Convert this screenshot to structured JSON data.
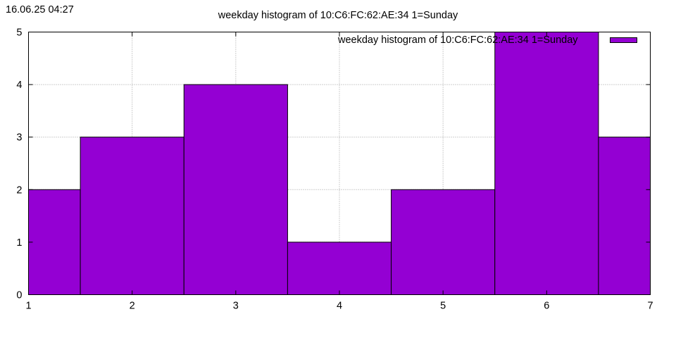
{
  "timestamp": "16.06.25 04:27",
  "chart_data": {
    "type": "bar",
    "title": "weekday histogram of 10:C6:FC:62:AE:34 1=Sunday",
    "xlabel": "",
    "ylabel": "",
    "x": [
      1,
      2,
      3,
      4,
      5,
      6,
      7
    ],
    "x_ticks": [
      "1",
      "2",
      "3",
      "4",
      "5",
      "6",
      "7"
    ],
    "y_ticks": [
      "0",
      "1",
      "2",
      "3",
      "4",
      "5"
    ],
    "xlim": [
      1,
      7
    ],
    "ylim": [
      0,
      5
    ],
    "grid": true,
    "legend_position": "top-right",
    "series": [
      {
        "name": "weekday histogram of 10:C6:FC:62:AE:34 1=Sunday",
        "values": [
          2,
          3,
          4,
          1,
          2,
          5,
          3
        ],
        "color": "#9400d3"
      }
    ]
  }
}
